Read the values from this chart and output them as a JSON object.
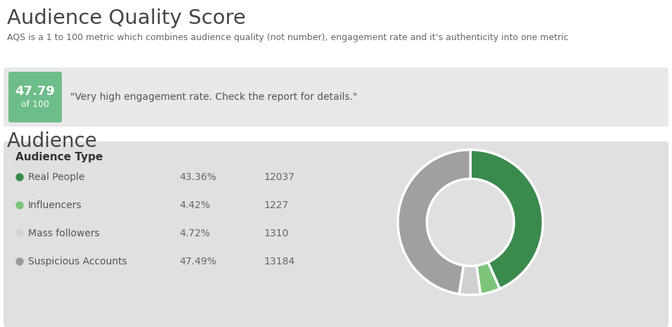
{
  "title": "Audience Quality Score",
  "subtitle": "AQS is a 1 to 100 metric which combines audience quality (not number), engagement rate and it’s authenticity into one metric",
  "aqs_score": "47.79",
  "aqs_label": "of 100",
  "aqs_quote": "\"Very high engagement rate. Check the report for details.\"",
  "aqs_box_color": "#6dbd8a",
  "aqs_bg_color": "#e8e8e8",
  "audience_title": "Audience",
  "audience_type_title": "Audience Type",
  "audience_panel_bg": "#e0e0e0",
  "rows": [
    {
      "label": "Real People",
      "dot_color": "#3a8a4e",
      "pct": "43.36%",
      "count": "12037"
    },
    {
      "label": "Influencers",
      "dot_color": "#7dc47a",
      "pct": "4.42%",
      "count": "1227"
    },
    {
      "label": "Mass followers",
      "dot_color": "#d4d4d4",
      "pct": "4.72%",
      "count": "1310"
    },
    {
      "label": "Suspicious Accounts",
      "dot_color": "#9a9a9a",
      "pct": "47.49%",
      "count": "13184"
    }
  ],
  "pie_values": [
    43.36,
    4.42,
    4.72,
    47.49
  ],
  "pie_colors": [
    "#3a8a4e",
    "#7dc47a",
    "#d0d0d0",
    "#a0a0a0"
  ],
  "bg_color": "#ffffff"
}
